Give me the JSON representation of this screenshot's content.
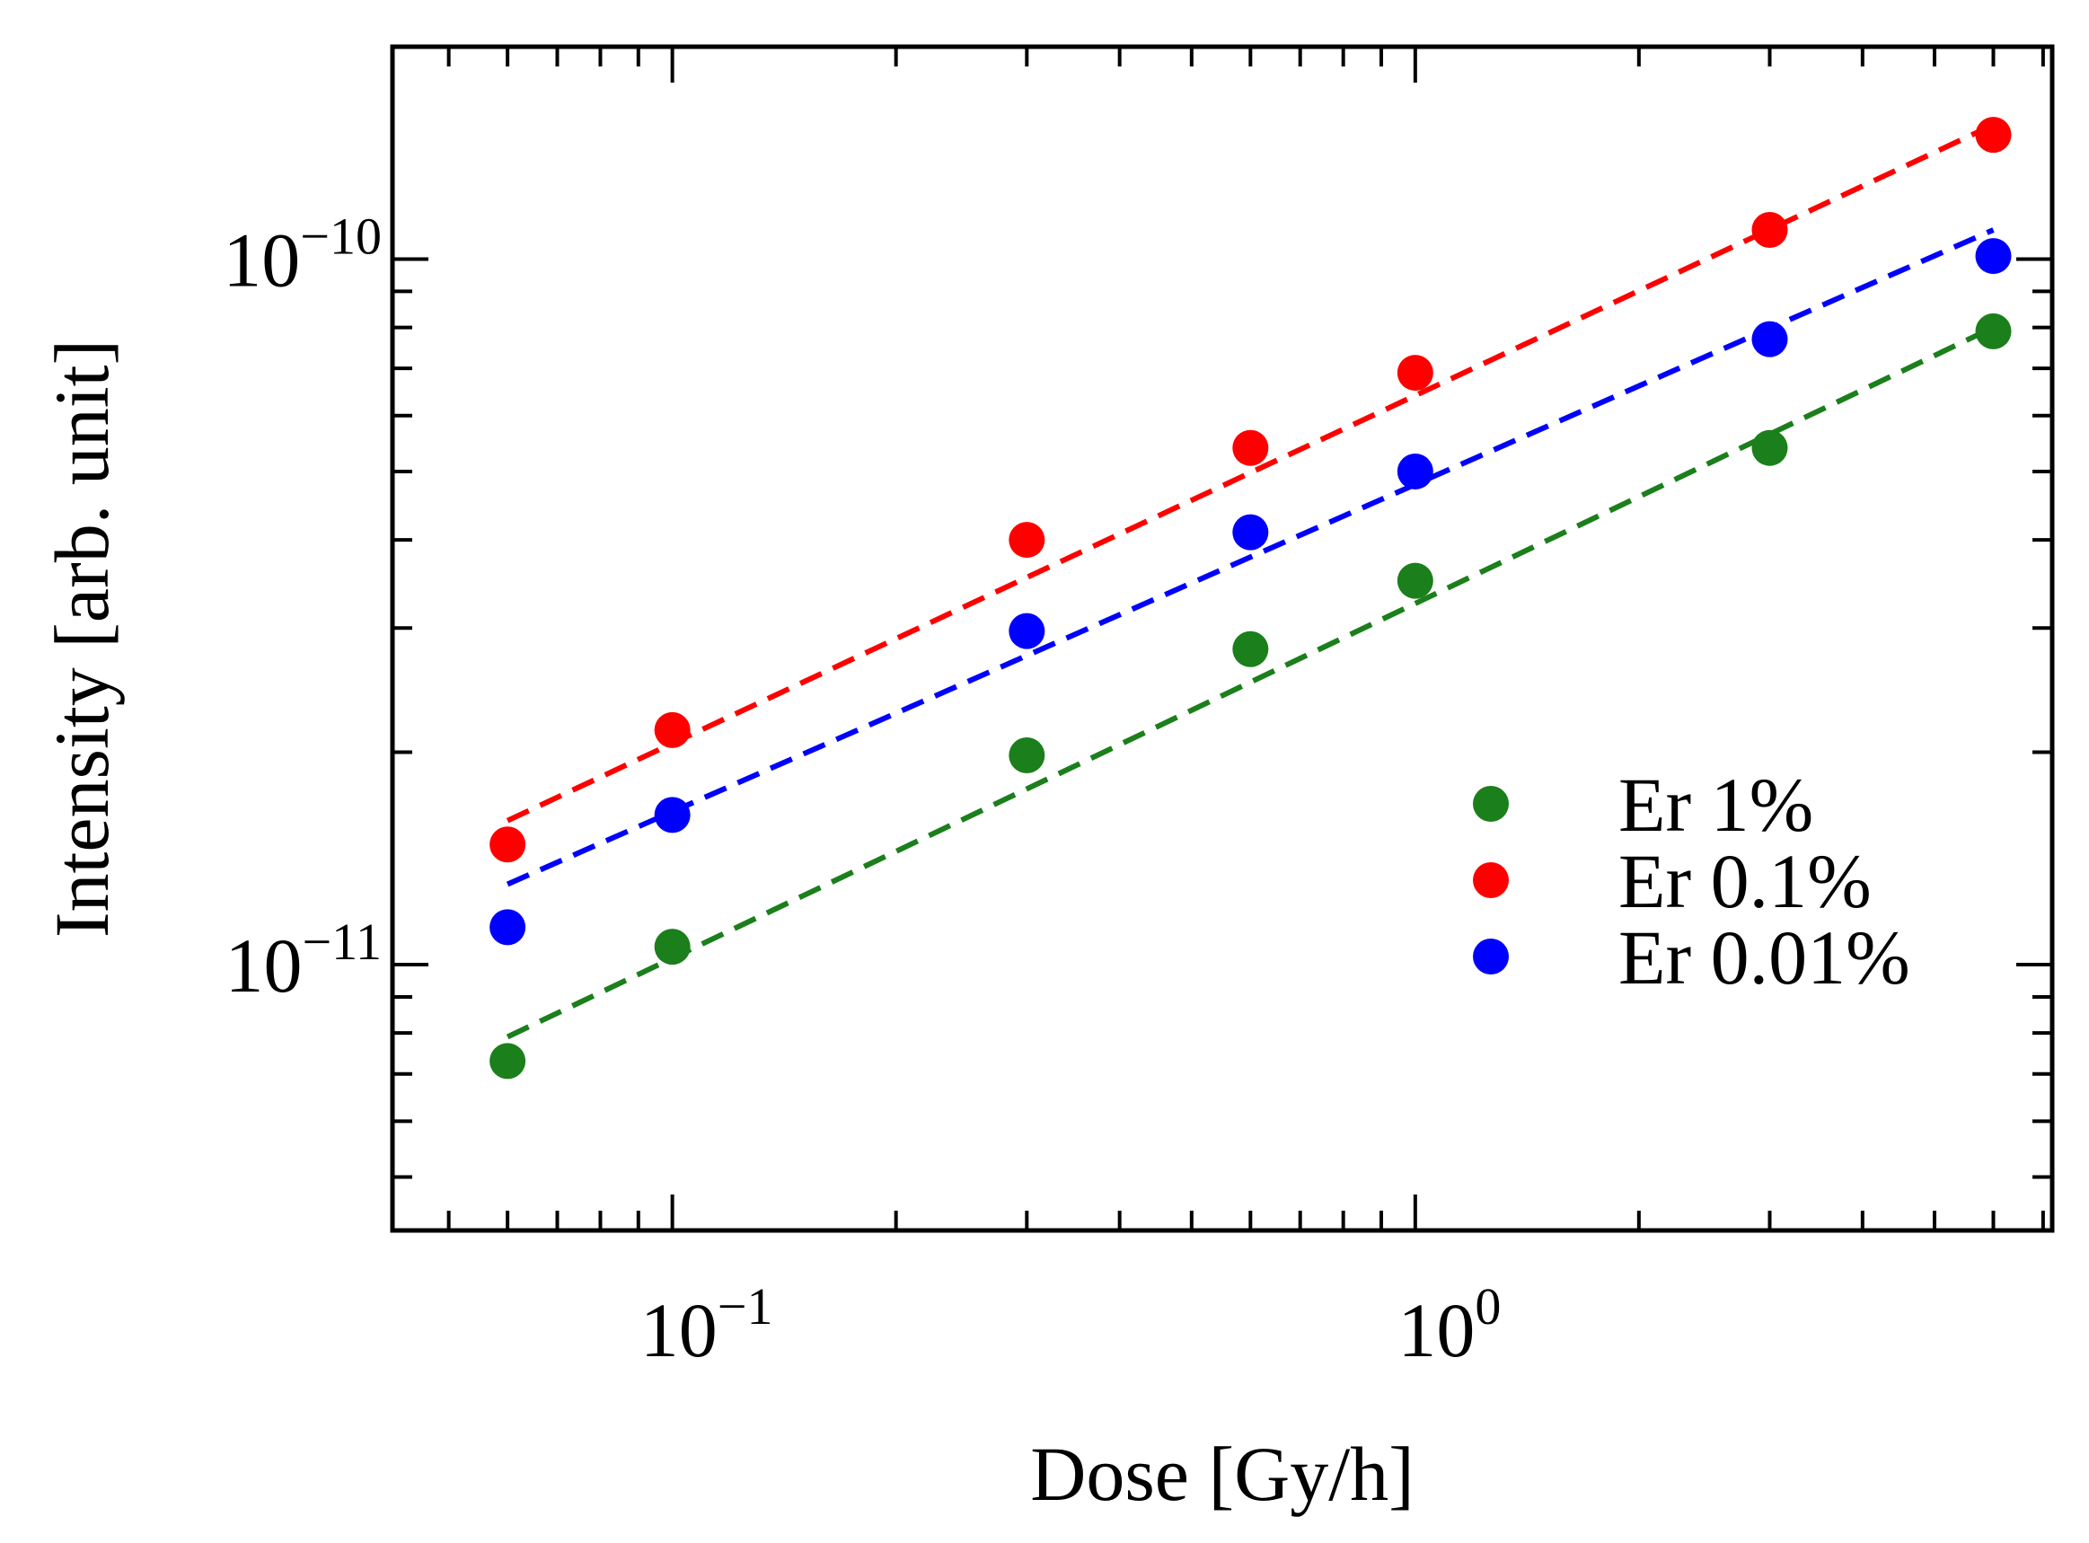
{
  "chart_data": {
    "type": "scatter",
    "title": "",
    "xlabel": "Dose [Gy/h]",
    "ylabel": "Intensity [arb. unit]",
    "xscale": "log",
    "yscale": "log",
    "xlim": [
      0.042,
      7.2
    ],
    "ylim": [
      4.2e-12,
      2e-10
    ],
    "xticks": [
      {
        "value": 0.1,
        "base": "10",
        "exp": "−1"
      },
      {
        "value": 1,
        "base": "10",
        "exp": "0"
      }
    ],
    "yticks": [
      {
        "value": 1e-11,
        "base": "10",
        "exp": "−11"
      },
      {
        "value": 1e-10,
        "base": "10",
        "exp": "−10"
      }
    ],
    "grid": false,
    "legend_position": "lower-right",
    "series": [
      {
        "name": "Er 1%",
        "color": "#1b7f1b",
        "x": [
          0.06,
          0.1,
          0.3,
          0.6,
          1.0,
          3.0,
          6.0
        ],
        "values": [
          7.3e-12,
          1.06e-11,
          1.98e-11,
          2.8e-11,
          3.5e-11,
          5.4e-11,
          7.9e-11
        ],
        "fit": {
          "x": [
            0.06,
            6.0
          ],
          "y": [
            7.9e-12,
            8e-11
          ]
        }
      },
      {
        "name": "Er 0.1%",
        "color": "#ff0000",
        "x": [
          0.06,
          0.1,
          0.3,
          0.6,
          1.0,
          3.0,
          6.0
        ],
        "values": [
          1.48e-11,
          2.15e-11,
          4e-11,
          5.4e-11,
          6.9e-11,
          1.1e-10,
          1.5e-10
        ],
        "fit": {
          "x": [
            0.06,
            6.0
          ],
          "y": [
            1.6e-11,
            1.55e-10
          ]
        }
      },
      {
        "name": "Er 0.01%",
        "color": "#0000ff",
        "x": [
          0.06,
          0.1,
          0.3,
          0.6,
          1.0,
          3.0,
          6.0
        ],
        "values": [
          1.13e-11,
          1.63e-11,
          2.97e-11,
          4.1e-11,
          5e-11,
          7.7e-11,
          1.01e-10
        ],
        "fit": {
          "x": [
            0.06,
            6.0
          ],
          "y": [
            1.3e-11,
            1.1e-10
          ]
        }
      }
    ]
  }
}
